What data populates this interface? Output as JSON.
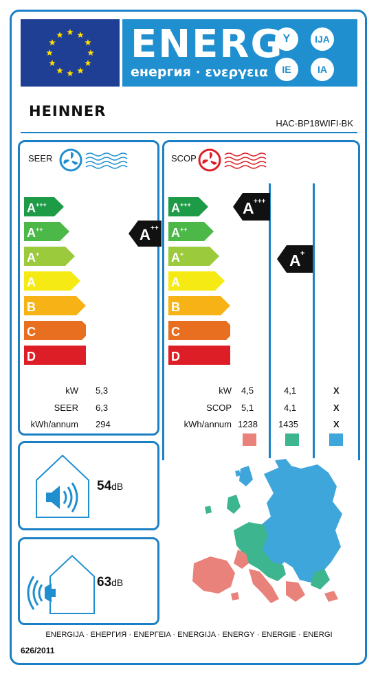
{
  "header": {
    "energy_word": "ENERG",
    "energy_sub": "енергия · ενεργεια",
    "lang_codes": [
      "Y",
      "IJA",
      "IE",
      "IA"
    ],
    "eu_flag_color": "#1f3f95",
    "energy_color": "#1f8fd0"
  },
  "brand": "HEINNER",
  "model": "HAC-BP18WIFI-BK",
  "classes": [
    {
      "label": "A+++",
      "color": "#1e9b46"
    },
    {
      "label": "A++",
      "color": "#4cb848"
    },
    {
      "label": "A+",
      "color": "#9bca3c"
    },
    {
      "label": "A",
      "color": "#f6ea14"
    },
    {
      "label": "B",
      "color": "#f7b316"
    },
    {
      "label": "C",
      "color": "#e86e20"
    },
    {
      "label": "D",
      "color": "#de1e26"
    }
  ],
  "seer_panel": {
    "title": "SEER",
    "rating": "A++",
    "rows": [
      {
        "label": "kW",
        "value": "5,3"
      },
      {
        "label": "SEER",
        "value": "6,3"
      },
      {
        "label": "kWh/annum",
        "value": "294"
      }
    ]
  },
  "scop_panel": {
    "title": "SCOP",
    "ratings": [
      {
        "zone": "warmer",
        "rating": "A+++"
      },
      {
        "zone": "average",
        "rating": "A+"
      }
    ],
    "rows": [
      {
        "label": "kW",
        "values": [
          "4,5",
          "4,1",
          "X"
        ]
      },
      {
        "label": "SCOP",
        "values": [
          "5,1",
          "4,1",
          "X"
        ]
      },
      {
        "label": "kWh/annum",
        "values": [
          "1238",
          "1435",
          "X"
        ]
      }
    ],
    "zone_colors": [
      "#e8827a",
      "#3db58f",
      "#3fa6dc"
    ]
  },
  "noise": {
    "indoor": {
      "value": "54",
      "unit": "dB"
    },
    "outdoor": {
      "value": "63",
      "unit": "dB"
    }
  },
  "footer": {
    "languages": "ENERGIJA · ЕНЕРГИЯ · ΕΝΕΡΓΕΙΑ · ENERGIJA · ENERGY · ENERGIE · ENERGI",
    "regulation": "626/2011"
  }
}
